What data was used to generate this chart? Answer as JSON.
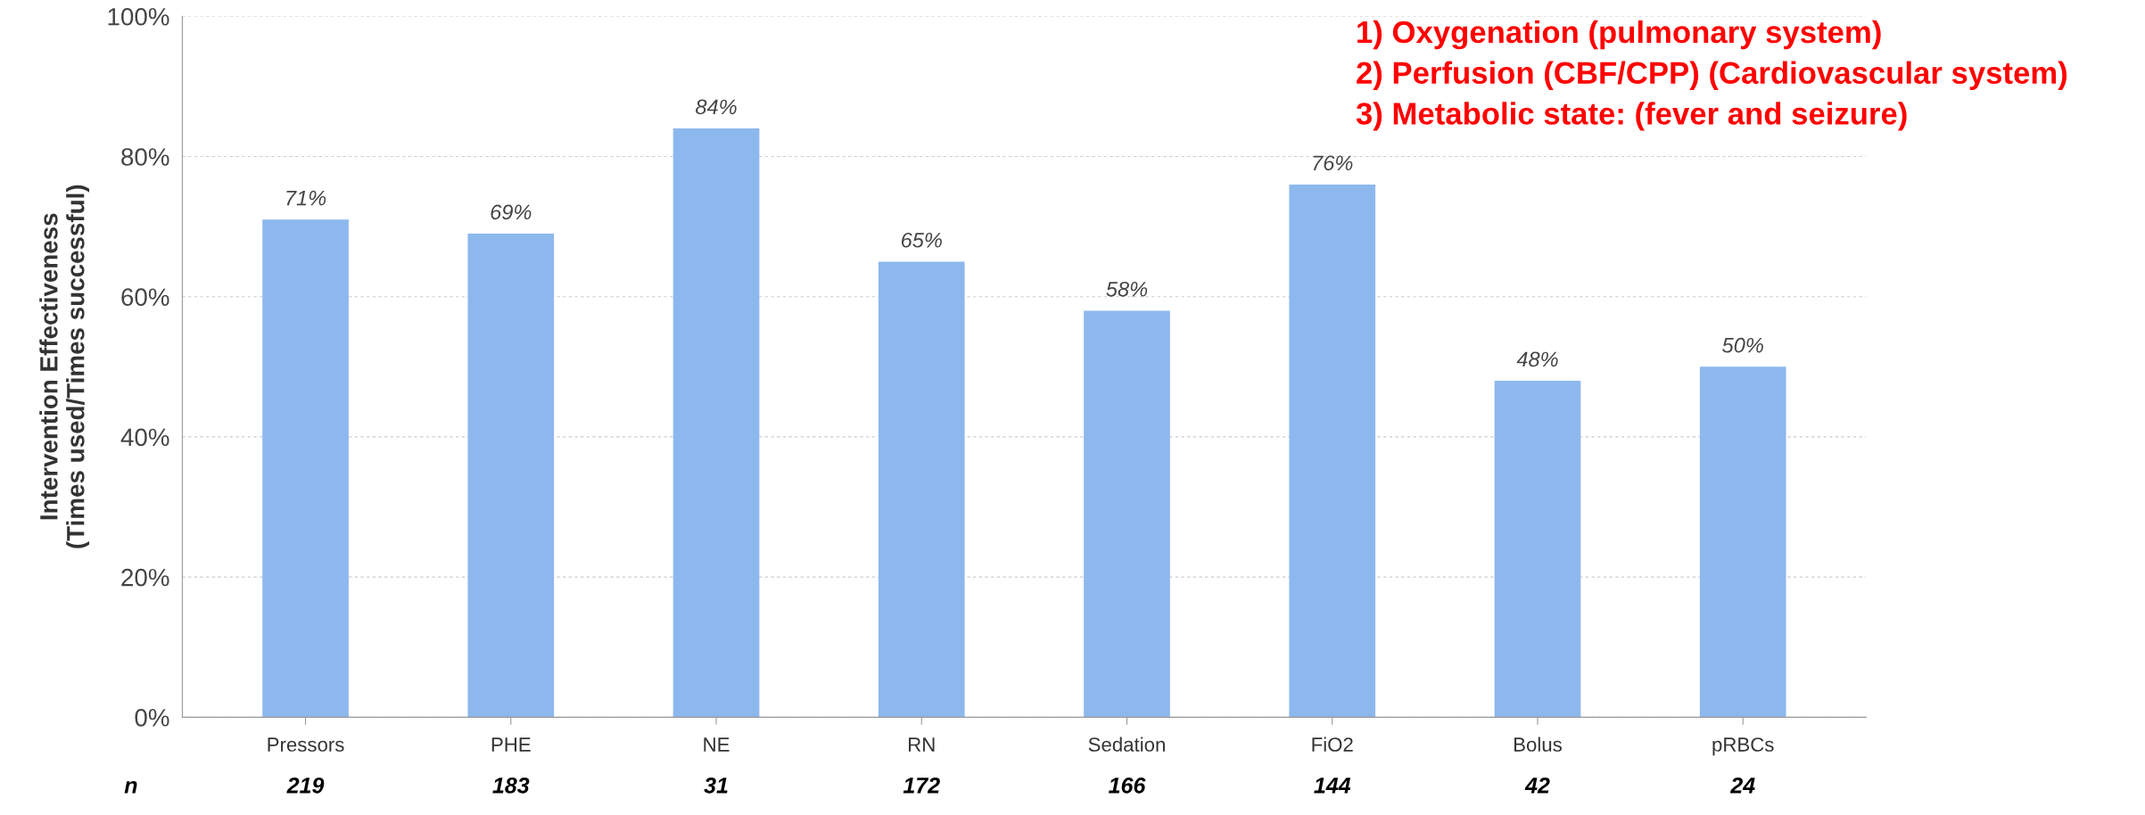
{
  "chart_data": {
    "type": "bar",
    "ylabel": "Intervention Effectiveness\n(Times used/Times successful)",
    "categories": [
      "Pressors",
      "PHE",
      "NE",
      "RN",
      "Sedation",
      "FiO2",
      "Bolus",
      "pRBCs"
    ],
    "values": [
      71,
      69,
      84,
      65,
      58,
      76,
      48,
      50
    ],
    "value_labels": [
      "71%",
      "69%",
      "84%",
      "65%",
      "58%",
      "76%",
      "48%",
      "50%"
    ],
    "color": "#8db8ee",
    "ylim": [
      0,
      100
    ],
    "yticks": [
      {
        "value": 0,
        "label": "0%"
      },
      {
        "value": 20,
        "label": "20%"
      },
      {
        "value": 40,
        "label": "40%"
      },
      {
        "value": 60,
        "label": "60%"
      },
      {
        "value": 80,
        "label": "80%"
      },
      {
        "value": 100,
        "label": "100%"
      }
    ],
    "grid": "y",
    "annotations": [
      "n",
      "219",
      "183",
      "31",
      "172",
      "166",
      "144",
      "42",
      "24",
      "1) Oxygenation (pulmonary system)",
      "2) Perfusion (CBF/CPP) (Cardiovascular system)",
      "3) Metabolic state: (fever and seizure)"
    ]
  }
}
